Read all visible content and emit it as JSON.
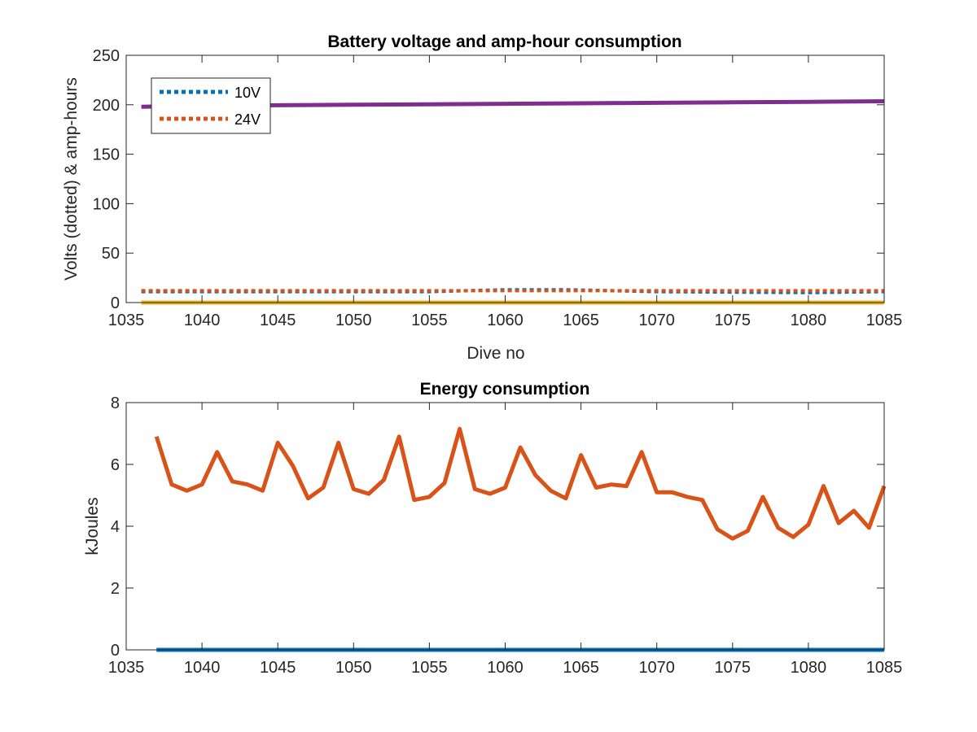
{
  "chart_data": [
    {
      "type": "line",
      "title": "Battery voltage and amp-hour consumption",
      "xlabel": "Dive no",
      "ylabel": "Volts (dotted) & amp-hours",
      "xlim": [
        1035,
        1085
      ],
      "ylim": [
        0,
        250
      ],
      "xticks": [
        1035,
        1040,
        1045,
        1050,
        1055,
        1060,
        1065,
        1070,
        1075,
        1080,
        1085
      ],
      "yticks": [
        0,
        50,
        100,
        150,
        200,
        250
      ],
      "grid": false,
      "legend": {
        "location": "top-left",
        "entries": [
          "10V",
          "24V"
        ]
      },
      "series": [
        {
          "name": "10V",
          "style": "dotted",
          "color": "#0072BD",
          "x": [
            1036,
            1045,
            1055,
            1060,
            1064,
            1070,
            1080,
            1085
          ],
          "y": [
            11,
            11,
            11,
            13,
            13,
            11,
            10,
            11
          ]
        },
        {
          "name": "24V",
          "style": "dotted",
          "color": "#D95319",
          "x": [
            1036,
            1045,
            1055,
            1060,
            1065,
            1070,
            1080,
            1085
          ],
          "y": [
            12,
            12,
            12,
            12,
            12,
            12,
            12,
            12
          ]
        },
        {
          "style": "solid",
          "color": "#EDB120",
          "x": [
            1036,
            1085
          ],
          "y": [
            0,
            0
          ]
        },
        {
          "style": "solid",
          "color": "#7E2F8E",
          "x": [
            1036,
            1040,
            1045,
            1050,
            1055,
            1060,
            1065,
            1070,
            1075,
            1080,
            1085
          ],
          "y": [
            198,
            199,
            199.5,
            200,
            200.5,
            201,
            201.5,
            202,
            202.5,
            203,
            203.5
          ]
        }
      ]
    },
    {
      "type": "line",
      "title": "Energy consumption",
      "xlabel": "",
      "ylabel": "kJoules",
      "xlim": [
        1035,
        1085
      ],
      "ylim": [
        0,
        8
      ],
      "xticks": [
        1035,
        1040,
        1045,
        1050,
        1055,
        1060,
        1065,
        1070,
        1075,
        1080,
        1085
      ],
      "yticks": [
        0,
        2,
        4,
        6,
        8
      ],
      "grid": false,
      "series": [
        {
          "style": "solid",
          "color": "#0072BD",
          "x": [
            1037,
            1085
          ],
          "y": [
            0,
            0
          ]
        },
        {
          "style": "solid",
          "color": "#D95319",
          "x": [
            1037,
            1038,
            1039,
            1040,
            1041,
            1042,
            1043,
            1044,
            1045,
            1046,
            1047,
            1048,
            1049,
            1050,
            1051,
            1052,
            1053,
            1054,
            1055,
            1056,
            1057,
            1058,
            1059,
            1060,
            1061,
            1062,
            1063,
            1064,
            1065,
            1066,
            1067,
            1068,
            1069,
            1070,
            1071,
            1072,
            1073,
            1074,
            1075,
            1076,
            1077,
            1078,
            1079,
            1080,
            1081,
            1082,
            1083,
            1084,
            1085
          ],
          "y": [
            6.9,
            5.35,
            5.15,
            5.35,
            6.4,
            5.45,
            5.35,
            5.15,
            6.7,
            5.95,
            4.9,
            5.25,
            6.7,
            5.2,
            5.05,
            5.5,
            6.9,
            4.85,
            4.95,
            5.4,
            7.15,
            5.2,
            5.05,
            5.25,
            6.55,
            5.65,
            5.15,
            4.9,
            6.3,
            5.25,
            5.35,
            5.3,
            6.4,
            5.1,
            5.1,
            4.95,
            4.85,
            3.9,
            3.6,
            3.85,
            4.95,
            3.95,
            3.65,
            4.05,
            5.3,
            4.1,
            4.5,
            3.95,
            5.3
          ]
        }
      ]
    }
  ]
}
